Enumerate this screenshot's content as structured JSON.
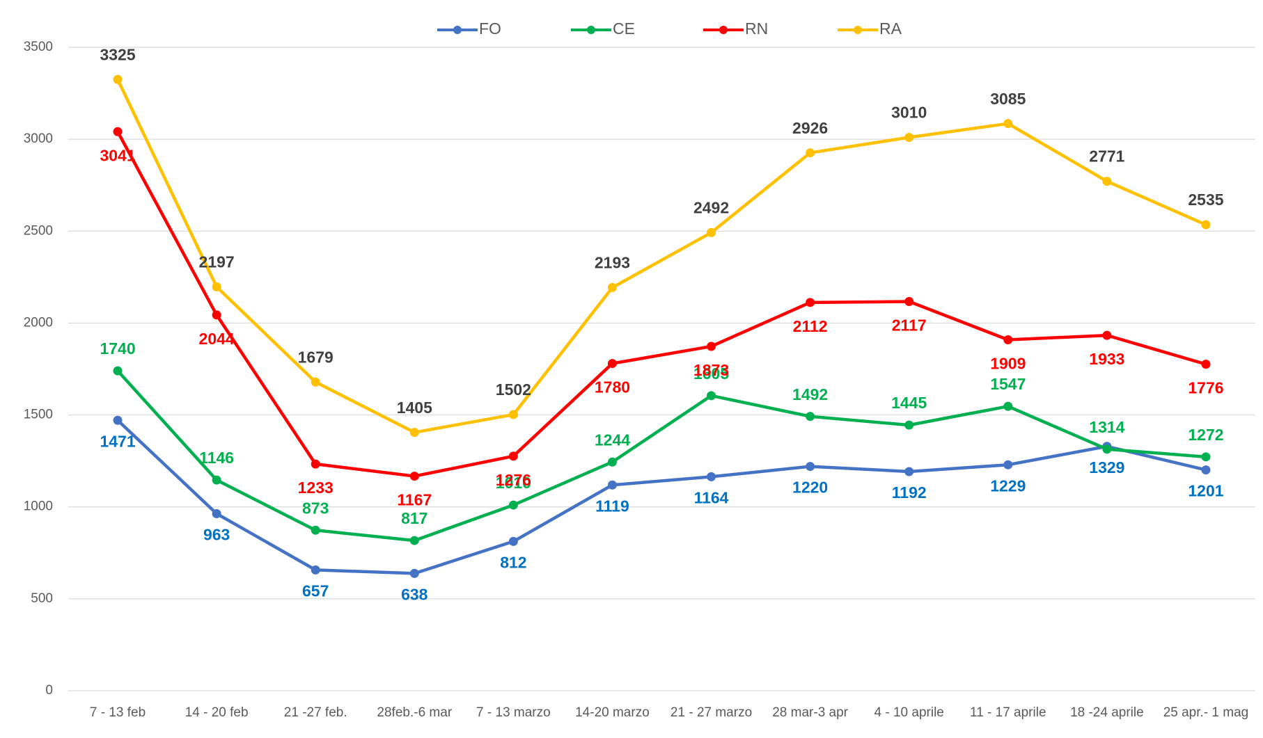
{
  "chart_data": {
    "type": "line",
    "categories": [
      "7 - 13 feb",
      "14 - 20 feb",
      "21 -27 feb.",
      "28feb.-6 mar",
      "7 - 13 marzo",
      "14-20 marzo",
      "21 - 27 marzo",
      "28 mar-3 apr",
      "4 - 10 aprile",
      "11 - 17 aprile",
      "18 -24 aprile",
      "25 apr.- 1 mag"
    ],
    "series": [
      {
        "name": "FO",
        "color": "#4472c4",
        "label_color": "#0070c0",
        "values": [
          1471,
          963,
          657,
          638,
          812,
          1119,
          1164,
          1220,
          1192,
          1229,
          1329,
          1201
        ]
      },
      {
        "name": "CE",
        "color": "#00b050",
        "label_color": "#00b050",
        "values": [
          1740,
          1146,
          873,
          817,
          1010,
          1244,
          1605,
          1492,
          1445,
          1547,
          1314,
          1272
        ]
      },
      {
        "name": "RN",
        "color": "#ff0000",
        "label_color": "#ff0000",
        "values": [
          3041,
          2044,
          1233,
          1167,
          1276,
          1780,
          1873,
          2112,
          2117,
          1909,
          1933,
          1776
        ]
      },
      {
        "name": "RA",
        "color": "#ffc000",
        "label_color": "#404040",
        "values": [
          3325,
          2197,
          1679,
          1405,
          1502,
          2193,
          2492,
          2926,
          3010,
          3085,
          2771,
          2535
        ]
      }
    ],
    "ylim": [
      0,
      3500
    ],
    "yticks": [
      0,
      500,
      1000,
      1500,
      2000,
      2500,
      3000,
      3500
    ],
    "grid": true,
    "legend": "top"
  }
}
